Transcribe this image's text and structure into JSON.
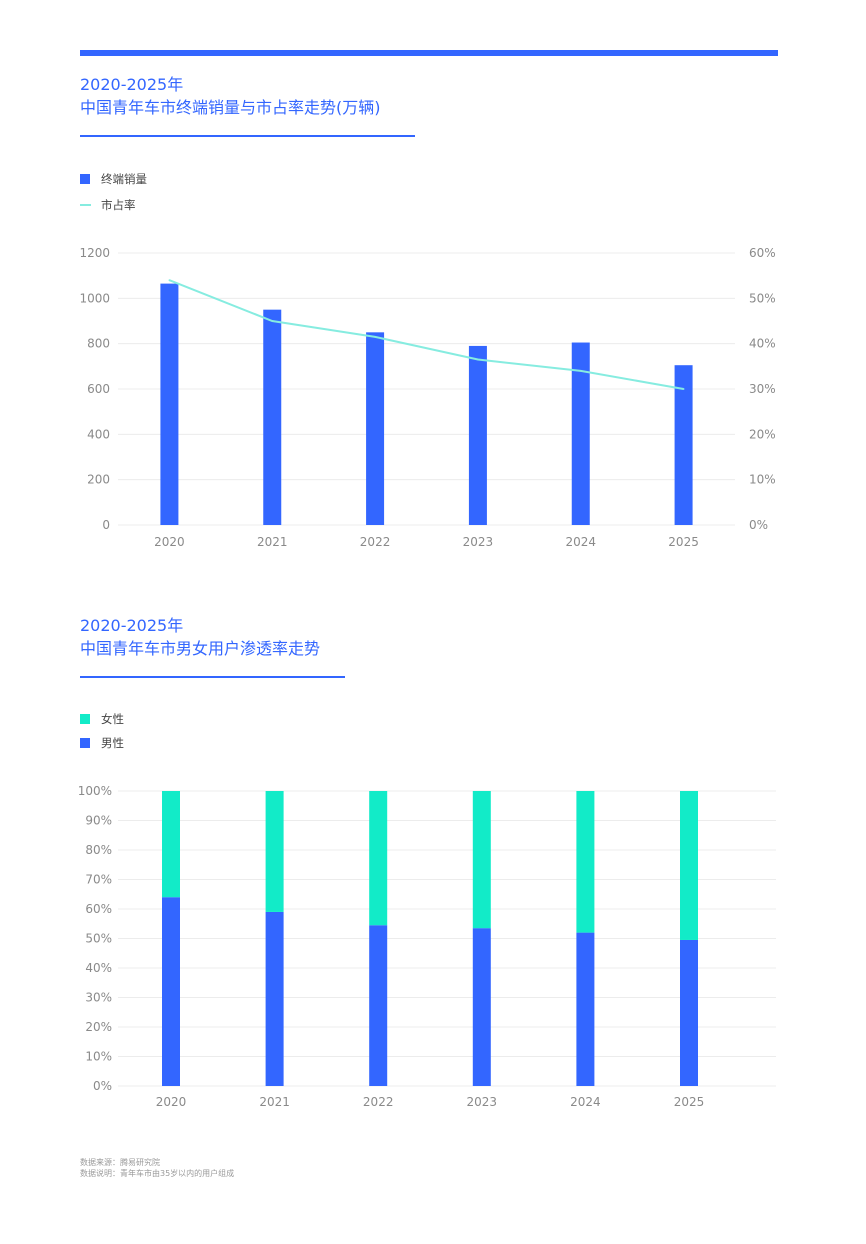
{
  "chart1": {
    "heading_line1": "2020-2025年",
    "heading_line2": "中国青年车市终端销量与市占率走势(万辆)",
    "legend_bar": "终端销量",
    "legend_line": "市占率",
    "colors": {
      "bar": "#3366ff",
      "line": "#86ece0",
      "grid": "#ececec"
    },
    "chart_data": {
      "type": "bar",
      "title": "",
      "categories": [
        "2020",
        "2021",
        "2022",
        "2023",
        "2024",
        "2025"
      ],
      "series": [
        {
          "name": "终端销量",
          "type": "bar",
          "axis": "left",
          "values": [
            1065,
            950,
            850,
            790,
            805,
            705
          ]
        },
        {
          "name": "市占率",
          "type": "line",
          "axis": "right",
          "values": [
            54,
            45,
            41.5,
            36.5,
            34,
            30
          ]
        }
      ],
      "ylim": [
        0,
        1200
      ],
      "y_ticks": [
        "0",
        "200",
        "400",
        "600",
        "800",
        "1000",
        "1200"
      ],
      "y2lim": [
        0,
        60
      ],
      "y2_ticks": [
        "0%",
        "10%",
        "20%",
        "30%",
        "40%",
        "50%",
        "60%"
      ],
      "grid": true,
      "legend": "top-left"
    }
  },
  "chart2": {
    "heading_line1": "2020-2025年",
    "heading_line2": "中国青年车市男女用户渗透率走势",
    "legend_female": "女性",
    "legend_male": "男性",
    "colors": {
      "female": "#12ebc8",
      "male": "#3366ff",
      "grid": "#ececec"
    },
    "chart_data": {
      "type": "bar",
      "stacked": true,
      "title": "",
      "categories": [
        "2020",
        "2021",
        "2022",
        "2023",
        "2024",
        "2025"
      ],
      "series": [
        {
          "name": "男性",
          "values": [
            64,
            59,
            54.5,
            53.5,
            52,
            49.5
          ]
        },
        {
          "name": "女性",
          "values": [
            36,
            41,
            45.5,
            46.5,
            48,
            50.5
          ]
        }
      ],
      "ylim": [
        0,
        100
      ],
      "y_ticks": [
        "0%",
        "10%",
        "20%",
        "30%",
        "40%",
        "50%",
        "60%",
        "70%",
        "80%",
        "90%",
        "100%"
      ],
      "grid": true,
      "legend": "top-left"
    }
  },
  "footer": {
    "source": "数据来源：腾易研究院",
    "note": "数据说明：青年车市由35岁以内的用户组成"
  }
}
